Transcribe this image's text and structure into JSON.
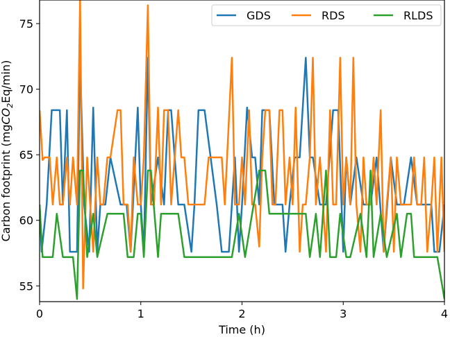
{
  "chart_data": {
    "type": "line",
    "title": "",
    "xlabel": "Time (h)",
    "ylabel_parts": {
      "prefix": "Carbon footprint (mg",
      "co": "CO",
      "sub": "2",
      "suffix": "Eq/min)"
    },
    "xlim": [
      0,
      4
    ],
    "ylim": [
      53.8,
      76.8
    ],
    "x_ticks": [
      {
        "value": 0,
        "label": "0"
      },
      {
        "value": 1,
        "label": "1"
      },
      {
        "value": 2,
        "label": "2"
      },
      {
        "value": 3,
        "label": "3"
      },
      {
        "value": 4,
        "label": "4"
      }
    ],
    "y_ticks": [
      {
        "value": 55,
        "label": "55"
      },
      {
        "value": 60,
        "label": "60"
      },
      {
        "value": 65,
        "label": "65"
      },
      {
        "value": 70,
        "label": "70"
      },
      {
        "value": 75,
        "label": "75"
      }
    ],
    "grid": false,
    "legend_position": "top-right",
    "series": [
      {
        "name": "GDS",
        "color": "#1f77b4",
        "x": [
          0,
          0.02,
          0.07,
          0.12,
          0.2,
          0.23,
          0.27,
          0.3,
          0.37,
          0.4,
          0.44,
          0.49,
          0.53,
          0.57,
          0.6,
          0.65,
          0.7,
          0.8,
          0.86,
          0.9,
          0.97,
          1.0,
          1.03,
          1.07,
          1.1,
          1.17,
          1.23,
          1.27,
          1.3,
          1.37,
          1.43,
          1.5,
          1.53,
          1.57,
          1.63,
          1.75,
          1.8,
          1.87,
          1.93,
          1.97,
          2.0,
          2.05,
          2.1,
          2.13,
          2.17,
          2.2,
          2.27,
          2.32,
          2.37,
          2.4,
          2.43,
          2.47,
          2.52,
          2.57,
          2.63,
          2.67,
          2.7,
          2.77,
          2.83,
          2.9,
          2.95,
          3.0,
          3.03,
          3.07,
          3.13,
          3.2,
          3.27,
          3.33,
          3.4,
          3.47,
          3.53,
          3.6,
          3.67,
          3.73,
          3.8,
          3.87,
          3.9,
          3.95,
          4.0
        ],
        "y": [
          61.2,
          57.6,
          61.2,
          68.4,
          68.4,
          61.2,
          68.4,
          57.6,
          57.6,
          72.4,
          61.2,
          57.6,
          68.6,
          57.6,
          61.2,
          61.2,
          64.8,
          61.2,
          61.2,
          57.6,
          68.6,
          61.2,
          57.6,
          72.4,
          61.2,
          64.8,
          61.2,
          68.4,
          68.4,
          61.2,
          61.2,
          57.6,
          61.2,
          68.4,
          68.4,
          61.2,
          57.6,
          57.6,
          64.8,
          57.6,
          61.2,
          68.6,
          64.8,
          64.8,
          61.2,
          68.4,
          68.4,
          61.2,
          61.2,
          61.2,
          57.6,
          61.2,
          64.8,
          64.8,
          72.4,
          64.8,
          64.8,
          61.2,
          61.2,
          68.4,
          68.4,
          57.6,
          64.8,
          61.2,
          64.8,
          61.2,
          61.2,
          64.8,
          57.6,
          64.8,
          61.2,
          61.2,
          64.8,
          61.2,
          61.2,
          61.2,
          57.6,
          57.6,
          61.2
        ]
      },
      {
        "name": "RDS",
        "color": "#ff7f0e",
        "x": [
          0,
          0.03,
          0.05,
          0.1,
          0.13,
          0.17,
          0.2,
          0.23,
          0.27,
          0.3,
          0.33,
          0.37,
          0.4,
          0.43,
          0.47,
          0.5,
          0.53,
          0.57,
          0.6,
          0.63,
          0.67,
          0.7,
          0.77,
          0.8,
          0.83,
          0.87,
          0.9,
          0.93,
          0.97,
          1.0,
          1.03,
          1.07,
          1.1,
          1.13,
          1.17,
          1.2,
          1.23,
          1.27,
          1.3,
          1.37,
          1.4,
          1.43,
          1.47,
          1.5,
          1.53,
          1.57,
          1.6,
          1.63,
          1.67,
          1.7,
          1.77,
          1.8,
          1.83,
          1.9,
          1.93,
          1.97,
          2.0,
          2.03,
          2.07,
          2.1,
          2.13,
          2.17,
          2.2,
          2.23,
          2.27,
          2.3,
          2.33,
          2.37,
          2.4,
          2.43,
          2.47,
          2.5,
          2.53,
          2.57,
          2.6,
          2.63,
          2.67,
          2.7,
          2.73,
          2.77,
          2.8,
          2.83,
          2.87,
          2.9,
          2.93,
          2.97,
          3.0,
          3.03,
          3.07,
          3.1,
          3.13,
          3.17,
          3.2,
          3.23,
          3.27,
          3.3,
          3.33,
          3.37,
          3.4,
          3.43,
          3.47,
          3.5,
          3.53,
          3.57,
          3.6,
          3.63,
          3.67,
          3.7,
          3.73,
          3.77,
          3.8,
          3.83,
          3.87,
          3.9,
          3.93,
          3.97,
          4.0
        ],
        "y": [
          68.4,
          64.6,
          64.8,
          64.8,
          61.2,
          64.8,
          61.2,
          61.2,
          64.8,
          61.2,
          64.8,
          61.2,
          77.0,
          54.8,
          64.8,
          61.2,
          57.6,
          64.8,
          61.2,
          61.2,
          64.8,
          64.8,
          68.4,
          68.4,
          61.2,
          61.2,
          57.6,
          64.8,
          61.2,
          61.2,
          64.8,
          76.4,
          61.2,
          61.2,
          68.6,
          61.2,
          68.4,
          68.4,
          61.2,
          68.4,
          64.8,
          64.8,
          61.2,
          61.2,
          61.2,
          61.2,
          61.2,
          61.2,
          64.8,
          64.8,
          64.8,
          64.8,
          61.2,
          72.4,
          61.2,
          61.2,
          64.8,
          61.2,
          68.4,
          61.2,
          61.2,
          58.0,
          64.8,
          68.4,
          68.4,
          61.2,
          61.2,
          68.4,
          68.4,
          61.2,
          64.8,
          61.2,
          68.6,
          57.6,
          61.2,
          61.2,
          64.8,
          72.4,
          61.2,
          64.8,
          61.2,
          57.6,
          68.4,
          61.2,
          61.2,
          72.4,
          61.2,
          64.8,
          61.2,
          72.4,
          61.2,
          57.6,
          64.8,
          61.2,
          61.2,
          64.8,
          61.2,
          68.4,
          57.6,
          61.2,
          64.8,
          57.6,
          64.8,
          61.2,
          61.2,
          61.2,
          61.2,
          64.8,
          61.2,
          61.2,
          64.8,
          57.6,
          61.2,
          64.8,
          57.6,
          64.8,
          57.6
        ]
      },
      {
        "name": "RLDS",
        "color": "#2ca02c",
        "x": [
          0,
          0.03,
          0.13,
          0.17,
          0.23,
          0.33,
          0.37,
          0.4,
          0.43,
          0.47,
          0.53,
          0.57,
          0.67,
          0.83,
          0.87,
          0.93,
          0.97,
          1.0,
          1.03,
          1.07,
          1.1,
          1.17,
          1.2,
          1.37,
          1.43,
          1.53,
          1.57,
          1.9,
          1.97,
          2.03,
          2.1,
          2.17,
          2.23,
          2.27,
          2.4,
          2.43,
          2.5,
          2.63,
          2.67,
          2.73,
          2.77,
          2.83,
          2.87,
          2.93,
          2.97,
          3.03,
          3.07,
          3.17,
          3.23,
          3.27,
          3.3,
          3.37,
          3.43,
          3.53,
          3.57,
          3.63,
          3.67,
          3.7,
          3.77,
          3.83,
          3.93,
          4.0
        ],
        "y": [
          61.2,
          57.2,
          57.2,
          60.5,
          57.2,
          57.2,
          54.0,
          63.8,
          63.8,
          57.2,
          60.5,
          57.2,
          60.5,
          60.5,
          57.2,
          57.2,
          60.5,
          60.5,
          57.2,
          63.8,
          63.8,
          57.2,
          60.5,
          60.5,
          57.2,
          57.2,
          57.2,
          57.2,
          60.5,
          57.2,
          60.5,
          63.8,
          63.8,
          60.5,
          60.5,
          60.5,
          60.5,
          60.5,
          57.2,
          60.5,
          57.2,
          63.8,
          57.2,
          57.2,
          60.5,
          57.2,
          57.2,
          60.5,
          57.2,
          63.8,
          57.2,
          60.5,
          57.2,
          60.5,
          57.2,
          60.5,
          60.5,
          57.2,
          57.2,
          57.2,
          57.2,
          54.0
        ]
      }
    ]
  }
}
